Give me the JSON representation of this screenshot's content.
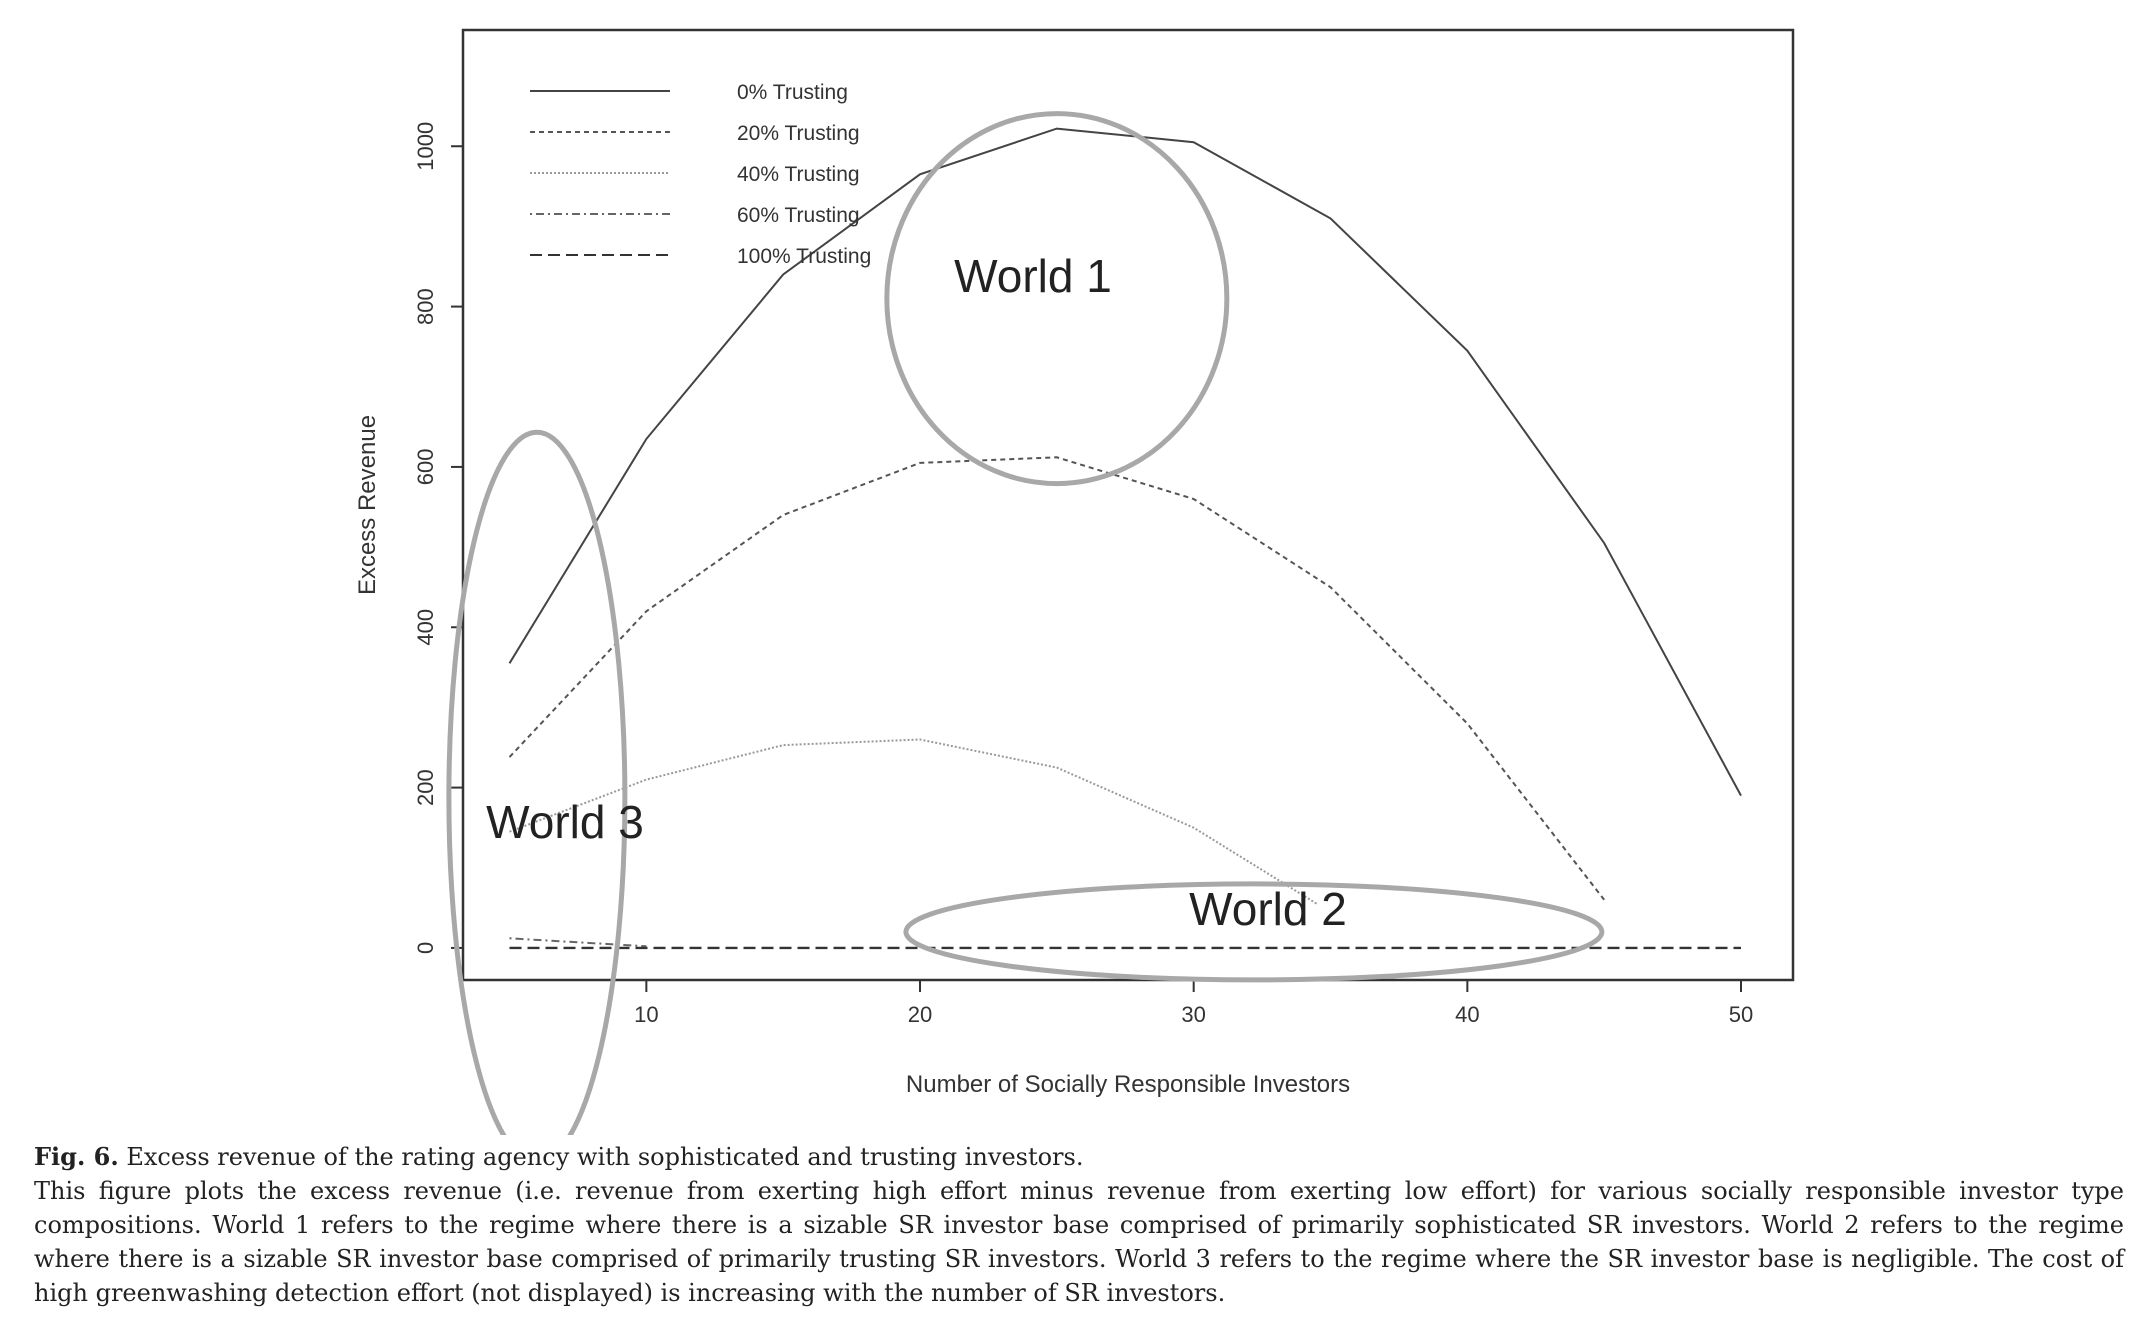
{
  "chart_data": {
    "type": "line",
    "xlabel": "Number of Socially Responsible Investors",
    "ylabel": "Excess Revenue",
    "xlim": [
      3.3,
      51.9
    ],
    "ylim": [
      -40,
      1145
    ],
    "xticks": [
      10,
      20,
      30,
      40,
      50
    ],
    "yticks": [
      0,
      200,
      400,
      600,
      800,
      1000
    ],
    "legend_position": "top-left",
    "series": [
      {
        "name": "0% Trusting",
        "dash": "solid",
        "x": [
          5,
          10,
          15,
          20,
          25,
          30,
          35,
          40,
          45,
          50
        ],
        "y": [
          355,
          635,
          840,
          965,
          1022,
          1005,
          910,
          745,
          505,
          190
        ]
      },
      {
        "name": "20% Trusting",
        "dash": "dashed",
        "x": [
          5,
          10,
          15,
          20,
          25,
          30,
          35,
          40,
          45
        ],
        "y": [
          238,
          420,
          540,
          605,
          612,
          560,
          450,
          280,
          60
        ]
      },
      {
        "name": "40% Trusting",
        "dash": "dotted",
        "x": [
          5,
          10,
          15,
          20,
          25,
          30,
          34.5
        ],
        "y": [
          145,
          210,
          253,
          260,
          225,
          150,
          55
        ]
      },
      {
        "name": "60% Trusting",
        "dash": "dotdash",
        "x": [
          5,
          10
        ],
        "y": [
          12,
          2
        ]
      },
      {
        "name": "100% Trusting",
        "dash": "longdash",
        "x": [
          5,
          50
        ],
        "y": [
          0,
          0
        ]
      }
    ],
    "annotations": [
      {
        "label": "World 1",
        "center": [
          25,
          810
        ]
      },
      {
        "label": "World 2",
        "center": [
          32.2,
          20
        ]
      },
      {
        "label": "World 3",
        "center": [
          6,
          188
        ]
      }
    ]
  },
  "caption": {
    "label": "Fig. 6.",
    "title": "Excess revenue of the rating agency with sophisticated and trusting investors.",
    "body": "This figure plots the excess revenue (i.e. revenue from exerting high effort minus revenue from exerting low effort) for various socially responsible investor type compositions. World 1 refers to the regime where there is a sizable SR investor base comprised of primarily sophisticated SR investors. World 2 refers to the regime where there is a sizable SR investor base comprised of primarily trusting SR investors. World 3 refers to the regime where the SR investor base is negligible. The cost of high greenwashing detection effort (not displayed) is increasing with the number of SR investors."
  }
}
